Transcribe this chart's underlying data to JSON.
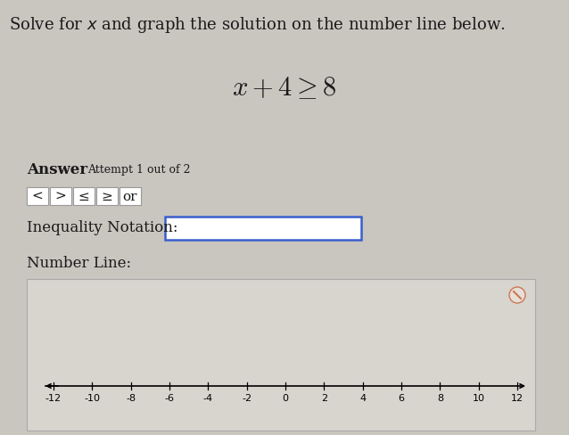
{
  "title_text": "Solve for $x$ and graph the solution on the number line below.",
  "equation": "$x+4\\geq 8$",
  "answer_label": "Answer",
  "attempt_label": "Attempt 1 out of 2",
  "buttons": [
    "<",
    ">",
    "≤",
    "≥",
    "or"
  ],
  "inequality_label": "Inequality Notation:",
  "number_line_label": "Number Line:",
  "bg_color": "#c9c5bf",
  "number_line_box_bg": "#d8d4ce",
  "input_box_color": "#3a5fcd",
  "number_line_ticks": [
    -12,
    -10,
    -8,
    -6,
    -4,
    -2,
    0,
    2,
    4,
    6,
    8,
    10,
    12
  ],
  "title_fontsize": 13,
  "equation_fontsize": 22,
  "answer_fontsize": 12,
  "attempt_fontsize": 9,
  "label_fontsize": 12,
  "button_fontsize": 11,
  "tick_fontsize": 8,
  "button_border_color": "#999999",
  "text_color": "#1a1a1a"
}
